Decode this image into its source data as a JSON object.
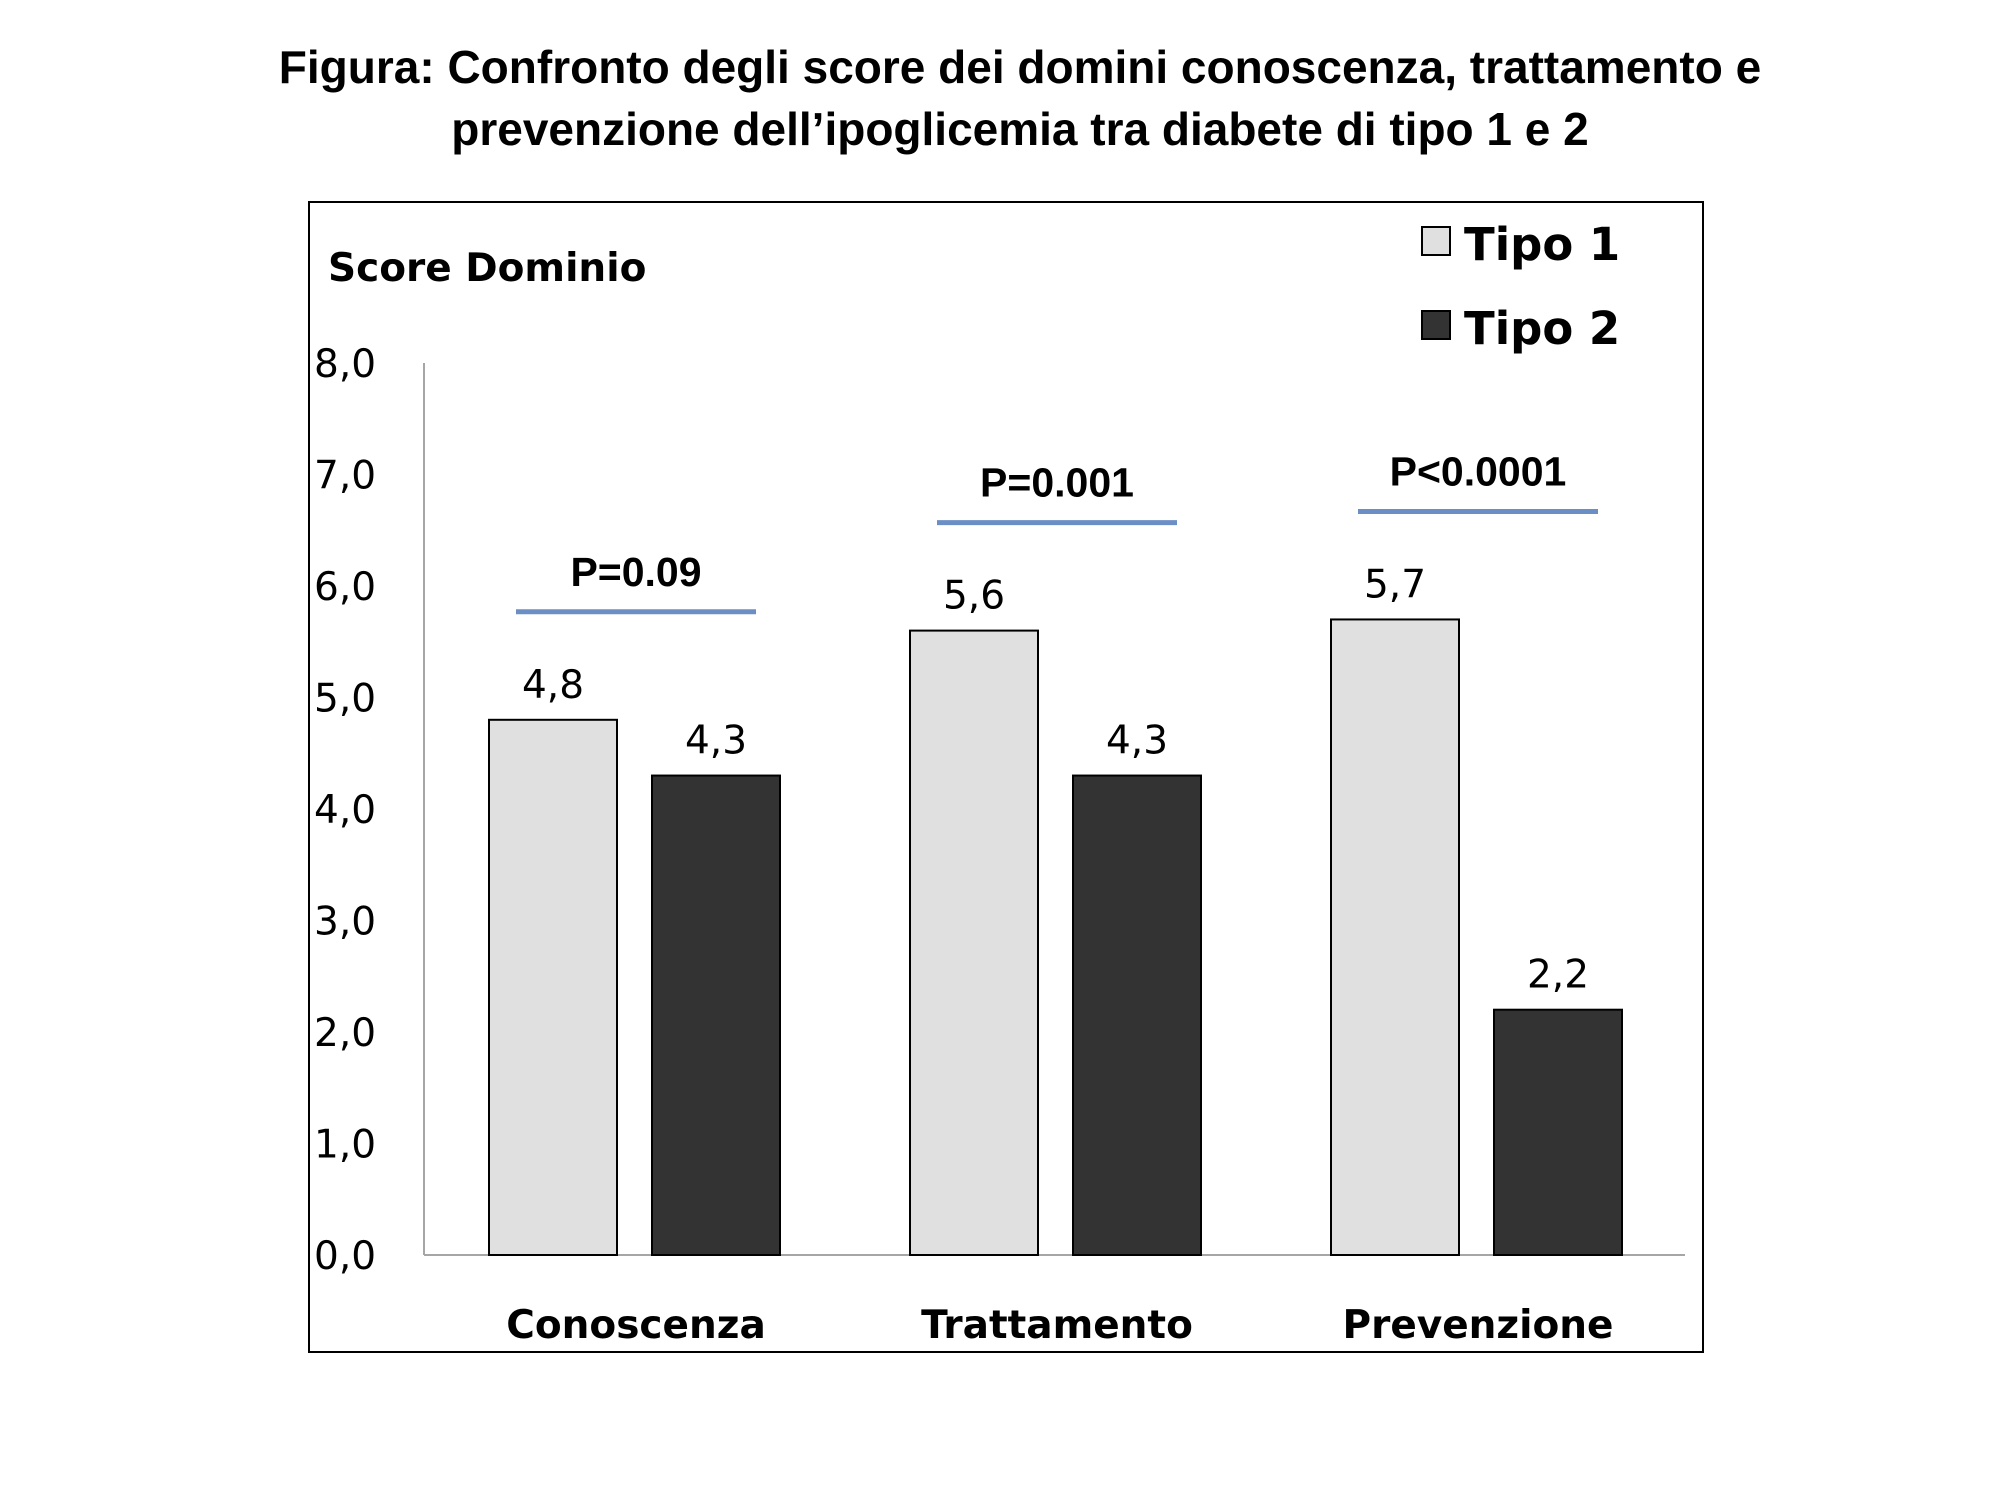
{
  "figure": {
    "title_line1": "Figura: Confronto degli score dei domini conoscenza, trattamento e",
    "title_line2": "prevenzione dell’ipoglicemia tra diabete di tipo 1 e 2"
  },
  "chart_data": {
    "type": "bar",
    "ylabel": "Score Dominio",
    "xlabel": "",
    "ylim": [
      0,
      8
    ],
    "yticks": [
      "0,0",
      "1,0",
      "2,0",
      "3,0",
      "4,0",
      "5,0",
      "6,0",
      "7,0",
      "8,0"
    ],
    "categories": [
      "Conoscenza",
      "Trattamento",
      "Prevenzione"
    ],
    "series": [
      {
        "name": "Tipo 1",
        "values": [
          4.8,
          5.6,
          5.7
        ],
        "labels": [
          "4,8",
          "5,6",
          "5,7"
        ],
        "color": "#e0e0e0"
      },
      {
        "name": "Tipo 2",
        "values": [
          4.3,
          4.3,
          2.2
        ],
        "labels": [
          "4,3",
          "4,3",
          "2,2"
        ],
        "color": "#333333"
      }
    ],
    "annotations": [
      "P=0.09",
      "P=0.001",
      "P<0.0001"
    ],
    "annotation_line_color": "#6b8fc4",
    "legend_position": "top-right",
    "grid": false
  }
}
